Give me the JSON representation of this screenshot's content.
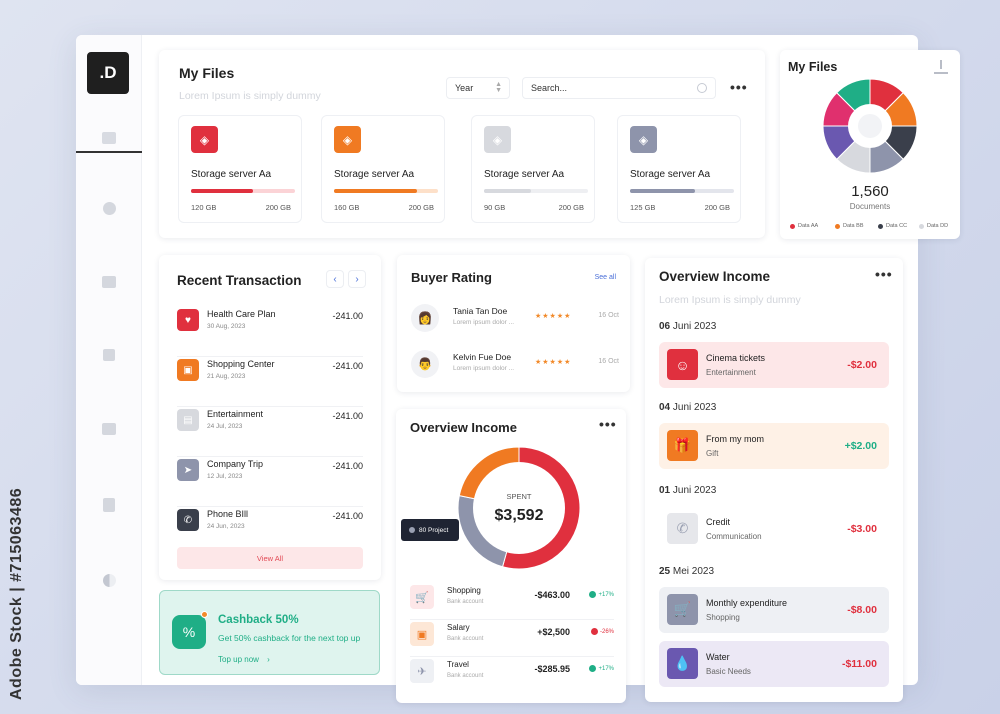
{
  "watermark": "Adobe Stock | #715063486",
  "logo": ".D",
  "my_files": {
    "title": "My Files",
    "subtitle": "Lorem Ipsum is simply dummy",
    "select_value": "Year",
    "search_placeholder": "Search...",
    "storage": [
      {
        "name": "Storage server Aa",
        "used": "120 GB",
        "total": "200 GB",
        "color": "#e0303e",
        "track": "#fbd3d6",
        "fraction": 0.6
      },
      {
        "name": "Storage server Aa",
        "used": "160 GB",
        "total": "200 GB",
        "color": "#f07a22",
        "track": "#fde0c9",
        "fraction": 0.8
      },
      {
        "name": "Storage server Aa",
        "used": "90 GB",
        "total": "200 GB",
        "color": "#d7d9de",
        "track": "#eeeff2",
        "fraction": 0.45
      },
      {
        "name": "Storage server Aa",
        "used": "125 GB",
        "total": "200 GB",
        "color": "#8e94ab",
        "track": "#e3e5ec",
        "fraction": 0.625
      }
    ]
  },
  "files_panel": {
    "title": "My Files",
    "count": "1,560",
    "count_label": "Documents",
    "legend": [
      {
        "label": "Data AA",
        "color": "#e0303e"
      },
      {
        "label": "Data BB",
        "color": "#f07a22"
      },
      {
        "label": "Data CC",
        "color": "#3a3f4b"
      },
      {
        "label": "Data DD",
        "color": "#d7d9de"
      }
    ]
  },
  "transactions": {
    "title": "Recent Transaction",
    "prev": "‹",
    "next": "›",
    "items": [
      {
        "name": "Health Care Plan",
        "date": "30 Aug, 2023",
        "amount": "-241.00",
        "color": "#e0303e"
      },
      {
        "name": "Shopping Center",
        "date": "21 Aug, 2023",
        "amount": "-241.00",
        "color": "#f07a22"
      },
      {
        "name": "Entertainment",
        "date": "24 Jul, 2023",
        "amount": "-241.00",
        "color": "#d7d9de"
      },
      {
        "name": "Company Trip",
        "date": "12 Jul, 2023",
        "amount": "-241.00",
        "color": "#8e94ab"
      },
      {
        "name": "Phone BIll",
        "date": "24 Jun, 2023",
        "amount": "-241.00",
        "color": "#3a3f4b"
      }
    ],
    "view_all": "View All"
  },
  "cashback": {
    "title": "Cashback 50%",
    "text": "Get 50% cashback for the next top up",
    "link": "Top up now"
  },
  "buyer_rating": {
    "title": "Buyer Rating",
    "see_all": "See all",
    "items": [
      {
        "name": "Tania Tan Doe",
        "desc": "Lorem ipsum dolor ...",
        "stars": "★★★★★",
        "date": "16 Oct"
      },
      {
        "name": "Kelvin Fue Doe",
        "desc": "Lorem ipsum dolor ...",
        "stars": "★★★★★",
        "date": "16 Oct"
      }
    ]
  },
  "overview_mid": {
    "title": "Overview Income",
    "spent_label": "SPENT",
    "spent_value": "$3,592",
    "tooltip": "80 Project",
    "items": [
      {
        "name": "Shopping",
        "bank": "Bank account",
        "amount": "-$463.00",
        "pct": "+17%",
        "pct_color": "#1fae86",
        "bg": "#fde7e8",
        "fg": "#e0303e"
      },
      {
        "name": "Salary",
        "bank": "Bank account",
        "amount": "+$2,500",
        "pct": "-26%",
        "pct_color": "#e0303e",
        "bg": "#fde7d6",
        "fg": "#f07a22"
      },
      {
        "name": "Travel",
        "bank": "Bank account",
        "amount": "-$285.95",
        "pct": "+17%",
        "pct_color": "#1fae86",
        "bg": "#eef0f4",
        "fg": "#8e94ab"
      }
    ]
  },
  "overview_right": {
    "title": "Overview Income",
    "subtitle": "Lorem Ipsum is simply dummy",
    "groups": [
      {
        "day": "06",
        "month": "Juni 2023"
      },
      {
        "day": "04",
        "month": "Juni 2023"
      },
      {
        "day": "01",
        "month": "Juni 2023"
      },
      {
        "day": "25",
        "month": "Mei 2023"
      }
    ],
    "items": [
      {
        "name": "Cinema tickets",
        "category": "Entertainment",
        "amount": "-$2.00",
        "amount_color": "#e0303e",
        "bg": "#fde7e8",
        "icon_bg": "#e0303e"
      },
      {
        "name": "From my mom",
        "category": "Gift",
        "amount": "+$2.00",
        "amount_color": "#1fae86",
        "bg": "#fef1e6",
        "icon_bg": "#f07a22"
      },
      {
        "name": "Credit",
        "category": "Communication",
        "amount": "-$3.00",
        "amount_color": "#e0303e",
        "bg": "#ffffff",
        "icon_bg": "#e6e7eb"
      },
      {
        "name": "Monthly expenditure",
        "category": "Shopping",
        "amount": "-$8.00",
        "amount_color": "#e0303e",
        "bg": "#eef0f4",
        "icon_bg": "#8e94ab"
      },
      {
        "name": "Water",
        "category": "Basic Needs",
        "amount": "-$11.00",
        "amount_color": "#e0303e",
        "bg": "#ece8f5",
        "icon_bg": "#6a58b0"
      }
    ]
  }
}
